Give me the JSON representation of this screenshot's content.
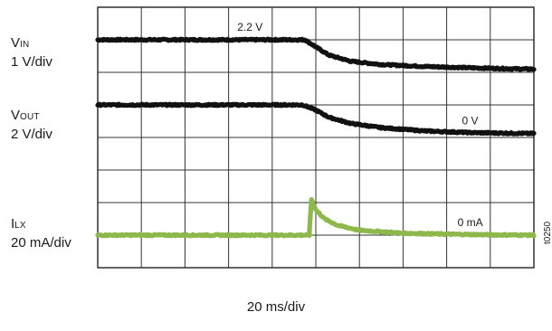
{
  "chart_data": {
    "type": "line",
    "grid": {
      "divisions_x": 10,
      "divisions_y": 8
    },
    "x_scale_label": "20 ms/div",
    "x": {
      "start": 0,
      "end": 10,
      "unit": "div"
    },
    "series": [
      {
        "key": "vin",
        "name_main": "V",
        "name_sub": "IN",
        "scale_label": "1 V/div",
        "color": "#111111",
        "points": [
          [
            0,
            7.0
          ],
          [
            4.75,
            7.0
          ],
          [
            5.0,
            6.78
          ],
          [
            5.3,
            6.53
          ],
          [
            5.8,
            6.34
          ],
          [
            6.5,
            6.24
          ],
          [
            7.5,
            6.18
          ],
          [
            8.5,
            6.14
          ],
          [
            9.5,
            6.11
          ],
          [
            10,
            6.1
          ]
        ],
        "annotation": {
          "text": "2.2 V",
          "x": 3.2,
          "y": 7.0
        }
      },
      {
        "key": "vout",
        "name_main": "V",
        "name_sub": "OUT",
        "scale_label": "2 V/div",
        "color": "#111111",
        "points": [
          [
            0,
            5.0
          ],
          [
            4.7,
            5.0
          ],
          [
            5.0,
            4.84
          ],
          [
            5.3,
            4.62
          ],
          [
            5.8,
            4.43
          ],
          [
            6.5,
            4.3
          ],
          [
            7.5,
            4.2
          ],
          [
            8.5,
            4.15
          ],
          [
            9.5,
            4.13
          ],
          [
            10,
            4.12
          ]
        ],
        "annotation": {
          "text": "0 V",
          "x": 8.35,
          "y": 4.12
        }
      },
      {
        "key": "ilx",
        "name_main": "I",
        "name_sub": "LX",
        "scale_label": "20 mA/div",
        "color": "#8fb84c",
        "points": [
          [
            0,
            1.0
          ],
          [
            4.85,
            1.0
          ],
          [
            4.87,
            1.5
          ],
          [
            4.9,
            2.1
          ],
          [
            5.0,
            1.78
          ],
          [
            5.2,
            1.5
          ],
          [
            5.5,
            1.3
          ],
          [
            6.0,
            1.15
          ],
          [
            7.0,
            1.06
          ],
          [
            8.0,
            1.03
          ],
          [
            9.0,
            1.01
          ],
          [
            10,
            1.0
          ]
        ],
        "annotation": {
          "text": "0 mA",
          "x": 8.25,
          "y": 1.0
        }
      }
    ]
  },
  "figure_code": "t0250"
}
